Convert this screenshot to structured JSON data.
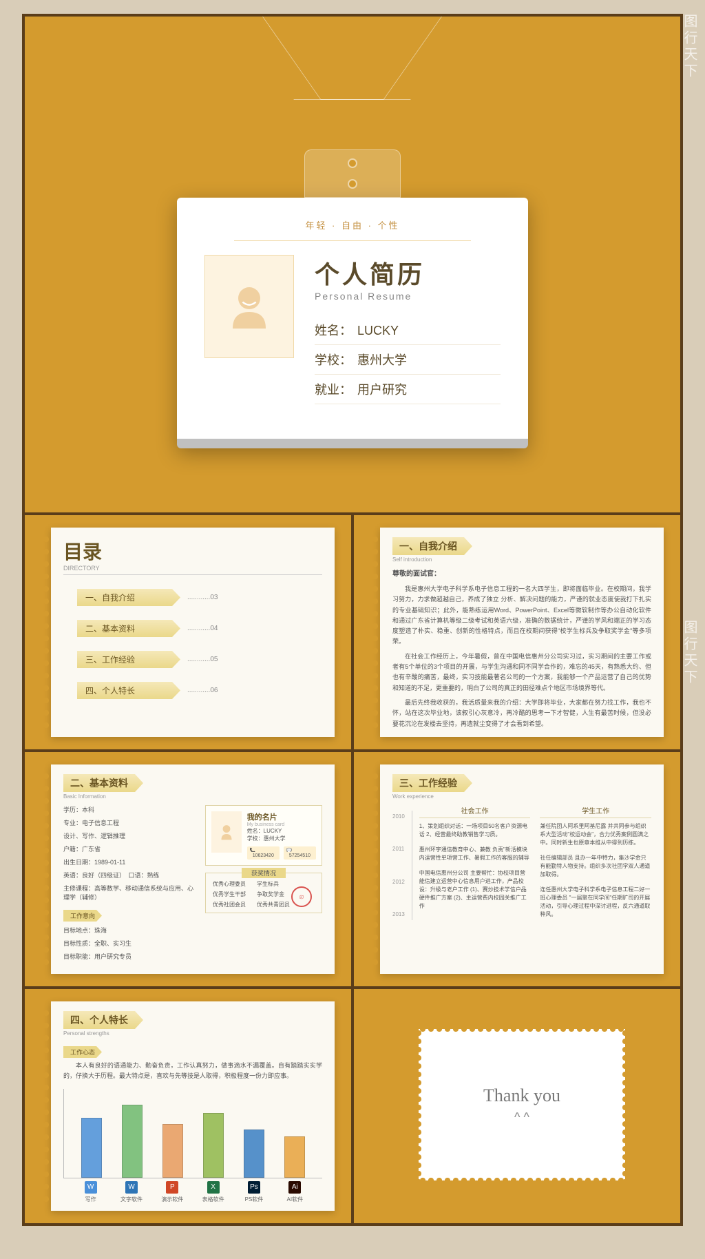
{
  "watermark": "图行天下",
  "badge": {
    "tagline": "年轻 · 自由 · 个性",
    "title": "个人简历",
    "subtitle": "Personal Resume",
    "name_label": "姓名：",
    "name_value": "LUCKY",
    "school_label": "学校：",
    "school_value": "惠州大学",
    "job_label": "就业：",
    "job_value": "用户研究"
  },
  "directory": {
    "title": "目录",
    "subtitle": "DIRECTORY",
    "items": [
      {
        "num": "一、",
        "label": "自我介绍",
        "page": "03"
      },
      {
        "num": "二、",
        "label": "基本资料",
        "page": "04"
      },
      {
        "num": "三、",
        "label": "工作经验",
        "page": "05"
      },
      {
        "num": "四、",
        "label": "个人特长",
        "page": "06"
      }
    ]
  },
  "intro": {
    "tab": "一、自我介绍",
    "sub": "Self introduction",
    "greeting": "尊敬的面试官：",
    "paragraphs": [
      "我是惠州大学电子科学系电子信息工程的一名大四学生，即将面临毕业。在校期间，我学习努力，力求做超越自己，养成了独立 分析、解决问题的能力，严谨的就业态度使我打下扎实的专业基础知识；此外，能熟练运用Word、PowerPoint、Excel等微软制作等办公自动化软件和通过广东省计算机等级二级考试和英语六级，准确的数据统计，严谨的学风和端正的学习态度塑造了朴实、稳重、创新的性格特点，而且在校期间获得\"校学生标兵及争取奖学金\"等多项荣。",
      "在社会工作经历上，今年暑假，曾在中国电信惠州分公司实习过，实习期间的主要工作或者有5个单位的3个项目的开展，与学生沟通和同不同学合作的，难忘的45天，有熟悉大约、但也有辛酸的痛苦，最终，实习技能最著名公司的一个方案，我能够一个产品运营了自己的优势和知道的不足，更重要的，明白了公司的真正的田径难点个地区市场境界等代。",
      "最后先终我收获的，我活质量来我的介绍：大学即将毕业，大家都在努力找工作，我也不怀，站在这次毕业地，该叙引心灰意冷，再冷酷的思考一下才智健，人生有最苦时候，但没必要花沉沦在发楼去坚持，再造就尘变得了才会看到希望。"
    ]
  },
  "basic": {
    "tab": "二、基本资料",
    "sub": "Basic Information",
    "left": [
      "学历：本科",
      "专业：电子信息工程",
      "设计、写作、逻辑推理",
      "户籍：广东省",
      "出生日期：1989-01-11",
      "英语：良好（四级证）　口语：熟练",
      "主修课程：高等数学、移动通信系统与应用、心理学（辅修）"
    ],
    "intent_tab": "工作意向",
    "intent": [
      "目标地点：珠海",
      "目标性质：全职、实习生",
      "目标职能：用户研究专员"
    ],
    "namecard": {
      "title": "我的名片",
      "sub": "My business card",
      "name": "姓名：LUCKY",
      "school": "学校：惠州大学",
      "phone": "10623420",
      "qq": "57254510"
    },
    "awards_title": "获奖情况",
    "awards": [
      "优秀心理委员",
      "学生标兵",
      "优秀学生干部",
      "争取奖学金",
      "优秀社团会员",
      "优秀共青团员"
    ]
  },
  "work": {
    "tab": "三、工作经验",
    "sub": "Work experience",
    "years": [
      "2010",
      "2011",
      "2012",
      "2013"
    ],
    "col1_title": "社会工作",
    "col2_title": "学生工作",
    "col1": [
      "1、策划组织对话：一场项目50名客户资源电话\n2、经营最终助教销售学习质。",
      "惠州环宇通信教育中心、兼教\n负责\"新活模块内运营性单项营工作、暑假工作的客服的辅导",
      "中国电信惠州分公司\n主要帮忙：协校项目营能信建立运营中心信息用户进工作，产品校设：升级与老户工作\n(1)、赛炒技术学信户品硬件推广方案\n(2)、主运营费内校园关推广工作"
    ],
    "col2": [
      "兼任院团人阿系里阿基尼露 并共同参与组织系大型活动\"校运动会\"，合力优秀案例圆满之中。同时新生也原章本维从中得到历练。",
      "社任编辑部员 且办一年中特力，集沙学金只有能勤特人物支持。组织多次社团学双人通道加取得。",
      "连任惠州大学电子科学系电子信息工程二好一班心理委员 \"一届聚在同学间\"任期旷司的开展活动，引导心理过程中深讨进程，反六通道取种风。"
    ]
  },
  "skills": {
    "tab": "四、个人特长",
    "sub": "Personal strengths",
    "mindset_tab": "工作心态",
    "mindset_text": "本人有良好的语通能力、勤奋负责，工作认真努力，做事滴水不漏覆盖。自有踏踏实实学的，仔换大于历程。最大特点是，喜欢与先等技是人取得，积极程度一份力即应事。",
    "chart": {
      "type": "bar",
      "max": 100,
      "bars": [
        {
          "label": "写作",
          "value": 72,
          "color": "#4a90d9",
          "icon_bg": "#4a90d9",
          "icon": "W"
        },
        {
          "label": "文字软件",
          "value": 88,
          "color": "#6db96d",
          "icon_bg": "#2e75b6",
          "icon": "W"
        },
        {
          "label": "演示软件",
          "value": 65,
          "color": "#e89b5c",
          "icon_bg": "#d04726",
          "icon": "P"
        },
        {
          "label": "表格软件",
          "value": 78,
          "color": "#8fb84a",
          "icon_bg": "#217346",
          "icon": "X"
        },
        {
          "label": "PS软件",
          "value": 58,
          "color": "#3a7fc4",
          "icon_bg": "#001d34",
          "icon": "Ps"
        },
        {
          "label": "AI软件",
          "value": 50,
          "color": "#e8a33d",
          "icon_bg": "#2a0a00",
          "icon": "Ai"
        }
      ]
    }
  },
  "thanks": {
    "title": "Thank you",
    "sub": "^ ^"
  },
  "colors": {
    "bg": "#d49b2e",
    "border": "#5a3d1a",
    "paper": "#fbf9f2",
    "tab_light": "#f5e8b8",
    "tab_dark": "#ead88a",
    "text_main": "#6a5522"
  }
}
